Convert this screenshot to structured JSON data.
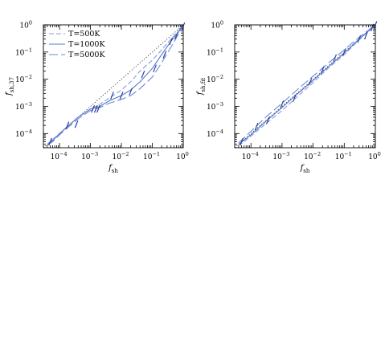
{
  "chart_data": [
    {
      "type": "line",
      "title": "",
      "xlabel": "f",
      "xlabel_sub": "sh",
      "ylabel": "f",
      "ylabel_sub": "sh,37",
      "xscale": "log",
      "yscale": "log",
      "xlim": [
        3e-05,
        1
      ],
      "ylim": [
        3e-05,
        1
      ],
      "xticks": [
        {
          "v": 0.0001,
          "m": "10",
          "e": "−4"
        },
        {
          "v": 0.001,
          "m": "10",
          "e": "−3"
        },
        {
          "v": 0.01,
          "m": "10",
          "e": "−2"
        },
        {
          "v": 0.1,
          "m": "10",
          "e": "−1"
        },
        {
          "v": 1,
          "m": "10",
          "e": "0"
        }
      ],
      "yticks": [
        {
          "v": 0.0001,
          "m": "10",
          "e": "−4"
        },
        {
          "v": 0.001,
          "m": "10",
          "e": "−3"
        },
        {
          "v": 0.01,
          "m": "10",
          "e": "−2"
        },
        {
          "v": 0.1,
          "m": "10",
          "e": "−1"
        },
        {
          "v": 1,
          "m": "10",
          "e": "0"
        }
      ],
      "legend": {
        "position": "top-left",
        "entries": [
          "T=500K",
          "T=1000K",
          "T=5000K"
        ]
      },
      "reference_line": {
        "style": "dotted",
        "x": [
          3e-05,
          1
        ],
        "y": [
          3e-05,
          1
        ]
      },
      "series": [
        {
          "name": "T=500K",
          "style": "short-dash",
          "color": "#8899dd",
          "x": [
            4e-05,
            6e-05,
            0.0001,
            0.0002,
            0.0004,
            0.001,
            0.002,
            0.004,
            0.01,
            0.02,
            0.04,
            0.1,
            0.2,
            0.4,
            0.7,
            1
          ],
          "y": [
            4e-05,
            6e-05,
            0.0001,
            0.0002,
            0.0004,
            0.0008,
            0.0012,
            0.002,
            0.004,
            0.008,
            0.02,
            0.05,
            0.12,
            0.3,
            0.6,
            1
          ]
        },
        {
          "name": "T=1000K",
          "style": "solid",
          "color": "#5577cc",
          "x": [
            4e-05,
            6e-05,
            0.0001,
            0.0002,
            0.0004,
            0.001,
            0.002,
            0.004,
            0.01,
            0.02,
            0.04,
            0.1,
            0.2,
            0.4,
            0.7,
            1
          ],
          "y": [
            4e-05,
            5.5e-05,
            0.0001,
            0.0002,
            0.0004,
            0.0008,
            0.001,
            0.0016,
            0.0025,
            0.004,
            0.008,
            0.025,
            0.08,
            0.25,
            0.55,
            1
          ]
        },
        {
          "name": "T=5000K",
          "style": "long-dash",
          "color": "#6b8ad8",
          "x": [
            4e-05,
            6e-05,
            0.0001,
            0.0002,
            0.0004,
            0.001,
            0.002,
            0.004,
            0.01,
            0.02,
            0.04,
            0.1,
            0.2,
            0.4,
            0.7,
            1
          ],
          "y": [
            3.8e-05,
            5e-05,
            9e-05,
            0.00018,
            0.00035,
            0.0007,
            0.0009,
            0.0013,
            0.0018,
            0.0025,
            0.0045,
            0.012,
            0.04,
            0.15,
            0.45,
            1
          ]
        }
      ],
      "error_marks": {
        "color": "#2a3f9e",
        "points": [
          [
            5e-05,
            5e-05
          ],
          [
            0.00018,
            0.0002
          ],
          [
            0.00035,
            0.00022
          ],
          [
            0.0012,
            0.0008
          ],
          [
            0.0015,
            0.0008
          ],
          [
            0.0018,
            0.0008
          ],
          [
            0.005,
            0.0025
          ],
          [
            0.01,
            0.0025
          ],
          [
            0.02,
            0.0035
          ],
          [
            0.05,
            0.015
          ],
          [
            0.12,
            0.025
          ],
          [
            0.25,
            0.08
          ],
          [
            0.4,
            0.25
          ],
          [
            0.6,
            0.4
          ],
          [
            1,
            0.9
          ]
        ]
      }
    },
    {
      "type": "line",
      "title": "",
      "xlabel": "f",
      "xlabel_sub": "sh",
      "ylabel": "f",
      "ylabel_sub": "sh,fit",
      "xscale": "log",
      "yscale": "log",
      "xlim": [
        3e-05,
        1
      ],
      "ylim": [
        3e-05,
        1
      ],
      "xticks": [
        {
          "v": 0.0001,
          "m": "10",
          "e": "−4"
        },
        {
          "v": 0.001,
          "m": "10",
          "e": "−3"
        },
        {
          "v": 0.01,
          "m": "10",
          "e": "−2"
        },
        {
          "v": 0.1,
          "m": "10",
          "e": "−1"
        },
        {
          "v": 1,
          "m": "10",
          "e": "0"
        }
      ],
      "yticks": [
        {
          "v": 0.0001,
          "m": "10",
          "e": "−4"
        },
        {
          "v": 0.001,
          "m": "10",
          "e": "−3"
        },
        {
          "v": 0.01,
          "m": "10",
          "e": "−2"
        },
        {
          "v": 0.1,
          "m": "10",
          "e": "−1"
        },
        {
          "v": 1,
          "m": "10",
          "e": "0"
        }
      ],
      "reference_line": {
        "style": "dotted",
        "x": [
          3e-05,
          1
        ],
        "y": [
          3e-05,
          1
        ]
      },
      "series": [
        {
          "name": "",
          "style": "short-dash",
          "color": "#8899dd",
          "x": [
            4e-05,
            0.0001,
            0.0003,
            0.001,
            0.003,
            0.01,
            0.03,
            0.1,
            0.3,
            1
          ],
          "y": [
            3.5e-05,
            8e-05,
            0.00023,
            0.0007,
            0.0022,
            0.0075,
            0.025,
            0.08,
            0.28,
            1
          ]
        },
        {
          "name": "",
          "style": "solid",
          "color": "#5577cc",
          "x": [
            4e-05,
            0.0001,
            0.0003,
            0.001,
            0.003,
            0.01,
            0.03,
            0.1,
            0.3,
            1
          ],
          "y": [
            4e-05,
            9e-05,
            0.00028,
            0.0009,
            0.0028,
            0.009,
            0.028,
            0.09,
            0.3,
            1
          ]
        },
        {
          "name": "",
          "style": "long-dash",
          "color": "#6b8ad8",
          "x": [
            4e-05,
            0.0001,
            0.0003,
            0.001,
            0.003,
            0.01,
            0.03,
            0.1,
            0.3,
            1
          ],
          "y": [
            4.5e-05,
            0.00012,
            0.0004,
            0.0013,
            0.004,
            0.013,
            0.038,
            0.12,
            0.35,
            1
          ]
        }
      ],
      "error_marks": {
        "color": "#2a3f9e",
        "points": [
          [
            5e-05,
            5e-05
          ],
          [
            0.00015,
            0.00018
          ],
          [
            0.00035,
            0.0003
          ],
          [
            0.001,
            0.0012
          ],
          [
            0.0025,
            0.002
          ],
          [
            0.008,
            0.008
          ],
          [
            0.02,
            0.022
          ],
          [
            0.05,
            0.06
          ],
          [
            0.1,
            0.1
          ],
          [
            0.3,
            0.3
          ],
          [
            0.5,
            0.4
          ],
          [
            0.8,
            0.8
          ],
          [
            1,
            1
          ]
        ]
      }
    }
  ]
}
